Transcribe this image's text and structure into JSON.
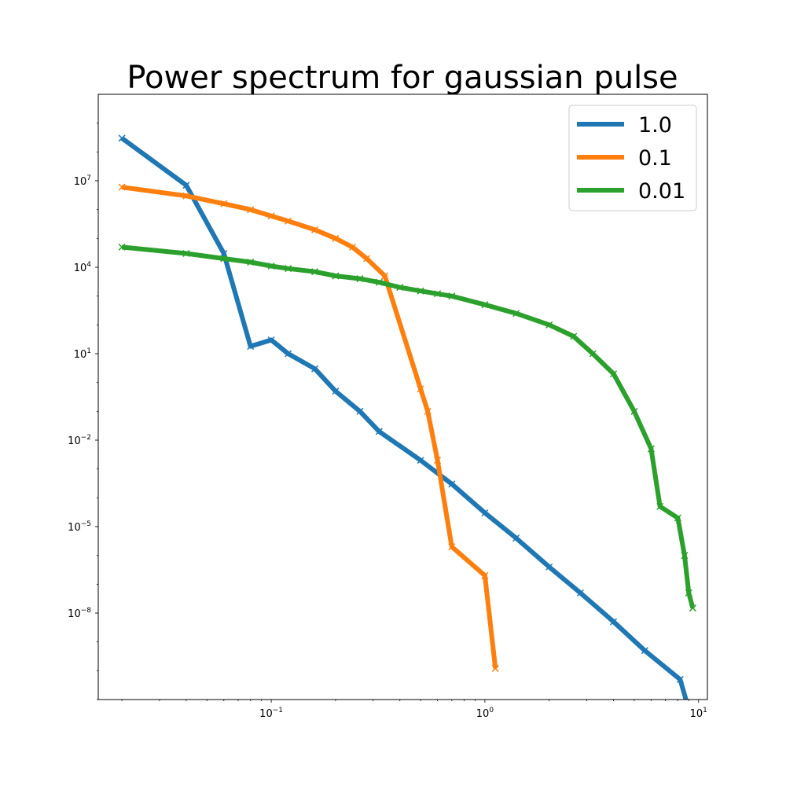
{
  "chart_data": {
    "type": "line",
    "title": "Power spectrum for gaussian pulse",
    "xlabel": "",
    "ylabel": "",
    "xscale": "log",
    "yscale": "log",
    "xlim": [
      0.0155,
      11.0
    ],
    "ylim": [
      1e-11,
      10000000000.0
    ],
    "xticks": [
      {
        "value": 0.1,
        "base": "10",
        "exp": "−1"
      },
      {
        "value": 1,
        "base": "10",
        "exp": "0"
      },
      {
        "value": 10,
        "base": "10",
        "exp": "1"
      }
    ],
    "yticks": [
      {
        "value": 10000000.0,
        "base": "10",
        "exp": "7"
      },
      {
        "value": 10000.0,
        "base": "10",
        "exp": "4"
      },
      {
        "value": 10,
        "base": "10",
        "exp": "1"
      },
      {
        "value": 0.01,
        "base": "10",
        "exp": "−2"
      },
      {
        "value": 1e-05,
        "base": "10",
        "exp": "−5"
      },
      {
        "value": 1e-08,
        "base": "10",
        "exp": "−8"
      }
    ],
    "grid": false,
    "legend_position": "top-right",
    "series": [
      {
        "name": "1.0",
        "color": "#1f77b4",
        "x": [
          0.02,
          0.04,
          0.06,
          0.08,
          0.1,
          0.12,
          0.16,
          0.2,
          0.26,
          0.32,
          0.5,
          0.7,
          1.0,
          1.4,
          2.0,
          2.8,
          4.0,
          5.6,
          8.2,
          9.4
        ],
        "y": [
          300000000.0,
          7000000.0,
          30000.0,
          18,
          30,
          10,
          3,
          0.5,
          0.1,
          0.02,
          0.002,
          0.0003,
          3e-05,
          4e-06,
          4e-07,
          5e-08,
          5e-09,
          5e-10,
          5e-11,
          1.5e-12
        ]
      },
      {
        "name": "0.1",
        "color": "#ff7f0e",
        "x": [
          0.02,
          0.04,
          0.06,
          0.08,
          0.1,
          0.12,
          0.16,
          0.2,
          0.24,
          0.28,
          0.34,
          0.5,
          0.54,
          0.6,
          0.7,
          1.0,
          1.12
        ],
        "y": [
          6000000.0,
          3000000.0,
          1600000.0,
          1000000.0,
          600000.0,
          400000.0,
          200000.0,
          100000.0,
          50000.0,
          20000.0,
          5000.0,
          0.6,
          0.1,
          0.002,
          2e-06,
          2e-07,
          1.2e-10
        ]
      },
      {
        "name": "0.01",
        "color": "#2ca02c",
        "x": [
          0.02,
          0.04,
          0.06,
          0.08,
          0.1,
          0.12,
          0.16,
          0.2,
          0.26,
          0.32,
          0.4,
          0.5,
          0.6,
          0.7,
          1.0,
          1.4,
          2.0,
          2.6,
          3.2,
          4.0,
          5.0,
          6.0,
          6.6,
          8.0,
          8.6,
          9.0,
          9.4
        ],
        "y": [
          50000.0,
          30000.0,
          20000.0,
          15000.0,
          11000.0,
          9000.0,
          7000.0,
          5000.0,
          4000.0,
          3000.0,
          2000.0,
          1500.0,
          1200.0,
          1000.0,
          500,
          250,
          100,
          40,
          10,
          2,
          0.1,
          0.005,
          5e-05,
          2e-05,
          1e-06,
          5e-08,
          1.5e-08
        ]
      }
    ]
  }
}
